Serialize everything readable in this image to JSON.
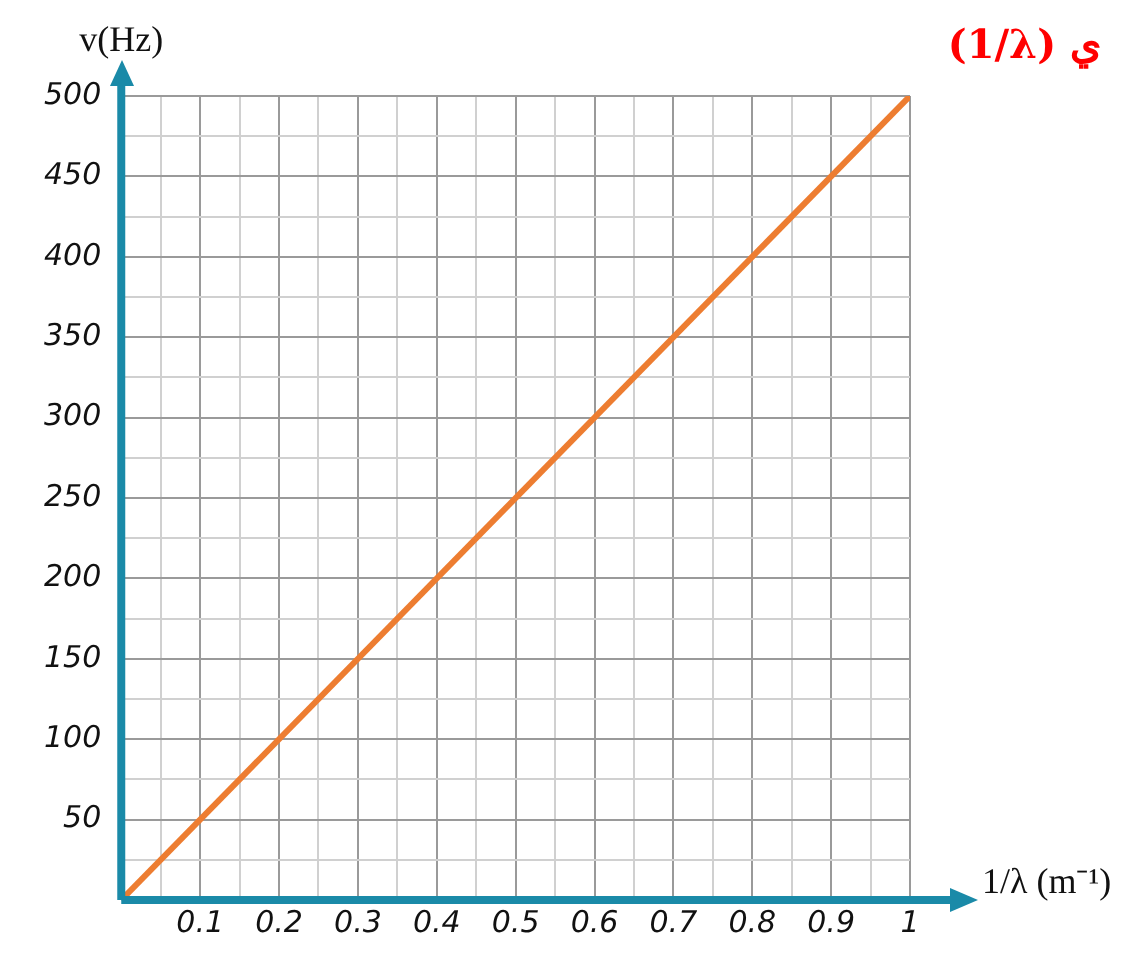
{
  "chart_data": {
    "type": "line",
    "xlabel": "1/λ (m⁻¹)",
    "ylabel": "v(Hz)",
    "annotations": [
      "(1/λ) ي"
    ],
    "x": [
      0,
      1
    ],
    "series": [
      {
        "color": "#ed7d31",
        "values": [
          0,
          500
        ]
      }
    ],
    "xlim": [
      0,
      1
    ],
    "ylim": [
      0,
      500
    ],
    "xticks": [
      {
        "value": 0,
        "label": null
      },
      {
        "value": 0.05,
        "label": null
      },
      0.1,
      {
        "value": 0.15,
        "label": null
      },
      0.2,
      {
        "value": 0.25,
        "label": null
      },
      0.3,
      {
        "value": 0.35,
        "label": null
      },
      0.4,
      {
        "value": 0.45,
        "label": null
      },
      0.5,
      {
        "value": 0.55,
        "label": null
      },
      0.6,
      {
        "value": 0.65,
        "label": null
      },
      0.7,
      {
        "value": 0.75,
        "label": null
      },
      0.8,
      {
        "value": 0.85,
        "label": null
      },
      0.9,
      {
        "value": 0.95,
        "label": null
      },
      1
    ],
    "yticks": [
      {
        "value": 0,
        "label": null
      },
      {
        "value": 25,
        "label": null
      },
      50,
      {
        "value": 75,
        "label": null
      },
      100,
      {
        "value": 125,
        "label": null
      },
      150,
      {
        "value": 175,
        "label": null
      },
      200,
      {
        "value": 225,
        "label": null
      },
      250,
      {
        "value": 275,
        "label": null
      },
      300,
      {
        "value": 325,
        "label": null
      },
      350,
      {
        "value": 375,
        "label": null
      },
      400,
      {
        "value": 425,
        "label": null
      },
      450,
      {
        "value": 475,
        "label": null
      },
      500
    ],
    "grid": true,
    "legend": false,
    "marker": "none",
    "line_style": "solid"
  }
}
